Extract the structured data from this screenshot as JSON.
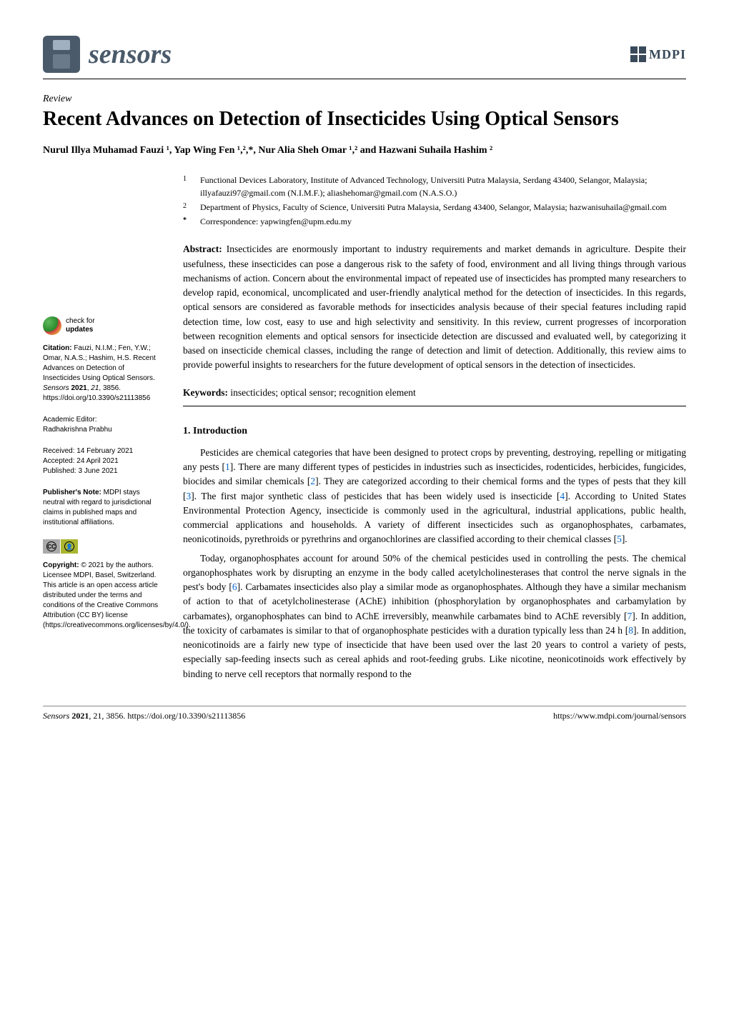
{
  "header": {
    "journal_name": "sensors",
    "publisher_logo_text": "MDPI"
  },
  "article": {
    "type": "Review",
    "title": "Recent Advances on Detection of Insecticides Using Optical Sensors",
    "authors_html": "Nurul Illya Muhamad Fauzi ¹, Yap Wing Fen ¹,²,*, Nur Alia Sheh Omar ¹,² and Hazwani Suhaila Hashim ²"
  },
  "affiliations": {
    "items": [
      {
        "marker": "1",
        "text": "Functional Devices Laboratory, Institute of Advanced Technology, Universiti Putra Malaysia, Serdang 43400, Selangor, Malaysia; illyafauzi97@gmail.com (N.I.M.F.); aliashehomar@gmail.com (N.A.S.O.)"
      },
      {
        "marker": "2",
        "text": "Department of Physics, Faculty of Science, Universiti Putra Malaysia, Serdang 43400, Selangor, Malaysia; hazwanisuhaila@gmail.com"
      },
      {
        "marker": "*",
        "text": "Correspondence: yapwingfen@upm.edu.my"
      }
    ]
  },
  "abstract": {
    "label": "Abstract:",
    "text": "Insecticides are enormously important to industry requirements and market demands in agriculture. Despite their usefulness, these insecticides can pose a dangerous risk to the safety of food, environment and all living things through various mechanisms of action. Concern about the environmental impact of repeated use of insecticides has prompted many researchers to develop rapid, economical, uncomplicated and user-friendly analytical method for the detection of insecticides. In this regards, optical sensors are considered as favorable methods for insecticides analysis because of their special features including rapid detection time, low cost, easy to use and high selectivity and sensitivity. In this review, current progresses of incorporation between recognition elements and optical sensors for insecticide detection are discussed and evaluated well, by categorizing it based on insecticide chemical classes, including the range of detection and limit of detection. Additionally, this review aims to provide powerful insights to researchers for the future development of optical sensors in the detection of insecticides."
  },
  "keywords": {
    "label": "Keywords:",
    "text": "insecticides; optical sensor; recognition element"
  },
  "section1": {
    "heading": "1. Introduction",
    "p1_pre": "Pesticides are chemical categories that have been designed to protect crops by preventing, destroying, repelling or mitigating any pests [",
    "p1_ref1": "1",
    "p1_mid1": "]. There are many different types of pesticides in industries such as insecticides, rodenticides, herbicides, fungicides, biocides and similar chemicals [",
    "p1_ref2": "2",
    "p1_mid2": "]. They are categorized according to their chemical forms and the types of pests that they kill [",
    "p1_ref3": "3",
    "p1_mid3": "]. The first major synthetic class of pesticides that has been widely used is insecticide [",
    "p1_ref4": "4",
    "p1_mid4": "]. According to United States Environmental Protection Agency, insecticide is commonly used in the agricultural, industrial applications, public health, commercial applications and households. A variety of different insecticides such as organophosphates, carbamates, neonicotinoids, pyrethroids or pyrethrins and organochlorines are classified according to their chemical classes [",
    "p1_ref5": "5",
    "p1_post": "].",
    "p2_pre": "Today, organophosphates account for around 50% of the chemical pesticides used in controlling the pests. The chemical organophosphates work by disrupting an enzyme in the body called acetylcholinesterases that control the nerve signals in the pest's body [",
    "p2_ref6": "6",
    "p2_mid1": "]. Carbamates insecticides also play a similar mode as organophosphates. Although they have a similar mechanism of action to that of acetylcholinesterase (AChE) inhibition (phosphorylation by organophosphates and carbamylation by carbamates), organophosphates can bind to AChE irreversibly, meanwhile carbamates bind to AChE reversibly [",
    "p2_ref7": "7",
    "p2_mid2": "]. In addition, the toxicity of carbamates is similar to that of organophosphate pesticides with a duration typically less than 24 h [",
    "p2_ref8": "8",
    "p2_post": "]. In addition, neonicotinoids are a fairly new type of insecticide that have been used over the last 20 years to control a variety of pests, especially sap-feeding insects such as cereal aphids and root-feeding grubs. Like nicotine, neonicotinoids work effectively by binding to nerve cell receptors that normally respond to the"
  },
  "sidebar": {
    "check_updates_line1": "check for",
    "check_updates_line2": "updates",
    "citation_label": "Citation:",
    "citation_text": " Fauzi, N.I.M.; Fen, Y.W.; Omar, N.A.S.; Hashim, H.S. Recent Advances on Detection of Insecticides Using Optical Sensors. ",
    "citation_journal": "Sensors",
    "citation_year": " 2021",
    "citation_vol": "21",
    "citation_pages": ", 3856. https://doi.org/10.3390/s21113856",
    "academic_editor_label": "Academic Editor:",
    "academic_editor_name": "Radhakrishna Prabhu",
    "received_label": "Received: ",
    "received_date": "14 February 2021",
    "accepted_label": "Accepted: ",
    "accepted_date": "24 April 2021",
    "published_label": "Published: ",
    "published_date": "3 June 2021",
    "publishers_note_label": "Publisher's Note:",
    "publishers_note_text": " MDPI stays neutral with regard to jurisdictional claims in published maps and institutional affiliations.",
    "cc_text": "CC",
    "by_text": "BY",
    "copyright_label": "Copyright:",
    "copyright_text": " © 2021 by the authors. Licensee MDPI, Basel, Switzerland. This article is an open access article distributed under the terms and conditions of the Creative Commons Attribution (CC BY) license (https://creativecommons.org/licenses/by/4.0/)."
  },
  "footer": {
    "left_italic": "Sensors ",
    "left_bold": "2021",
    "left_rest": ", 21, 3856. https://doi.org/10.3390/s21113856",
    "right": "https://www.mdpi.com/journal/sensors"
  },
  "colors": {
    "text": "#000000",
    "link": "#0066cc",
    "logo_gray": "#4a5a6a",
    "mdpi_gray": "#3a4a5a",
    "cc_gray": "#aaaaaa",
    "cc_by": "#aab62f"
  },
  "typography": {
    "body_font": "Palatino Linotype",
    "sidebar_font": "Arial",
    "title_size_pt": 21,
    "body_size_pt": 10,
    "sidebar_size_pt": 7.5
  }
}
